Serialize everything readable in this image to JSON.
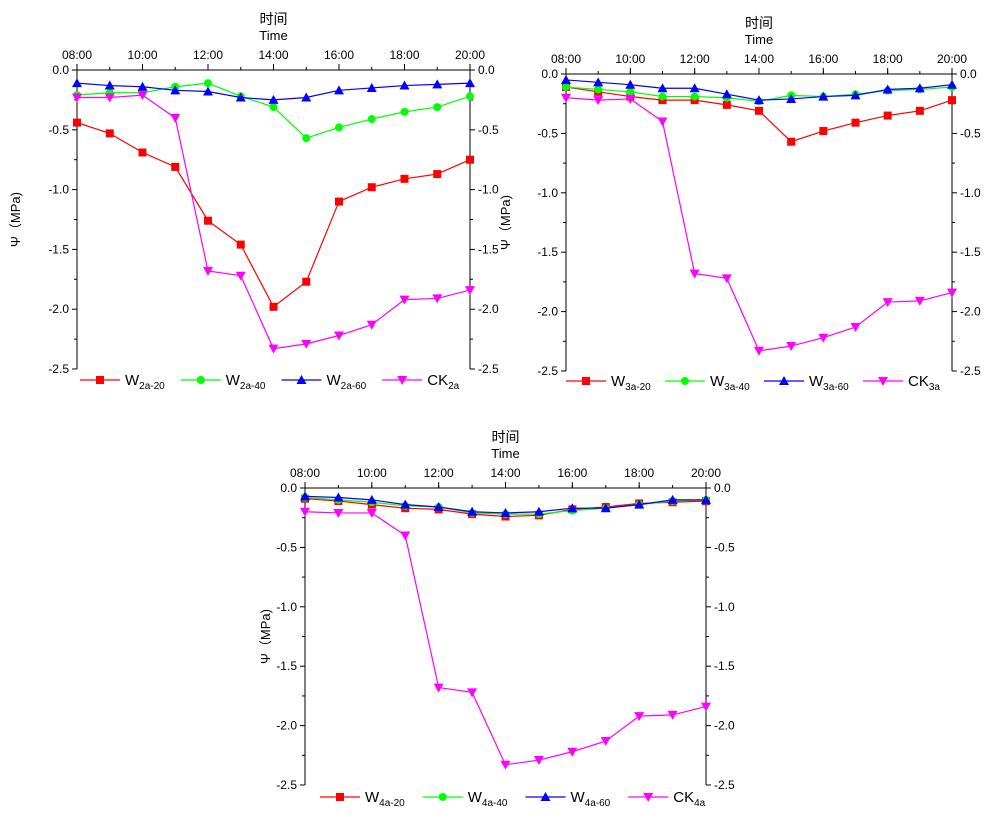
{
  "chart_data": [
    {
      "type": "line",
      "title": "时间",
      "subtitle": "Time",
      "xlabel": "",
      "ylabel": "Ψ（MPa)",
      "x_ticks": [
        "08:00",
        "10:00",
        "12:00",
        "14:00",
        "16:00",
        "18:00",
        "20:00"
      ],
      "x": [
        8,
        9,
        10,
        11,
        12,
        13,
        14,
        15,
        16,
        17,
        18,
        19,
        20
      ],
      "xlim": [
        8,
        20
      ],
      "ylim": [
        -2.5,
        0.0
      ],
      "y_ticks": [
        "-2.5",
        "-2.0",
        "-1.5",
        "-1.0",
        "-0.5",
        "0.0"
      ],
      "y_tick_values": [
        -2.5,
        -2.0,
        -1.5,
        -1.0,
        -0.5,
        0.0
      ],
      "legend_position": "bottom",
      "series": [
        {
          "name": "W",
          "sub": "2a-20",
          "color": "#ff0000",
          "marker": "square",
          "values": [
            -0.44,
            -0.53,
            -0.69,
            -0.81,
            -1.26,
            -1.46,
            -1.98,
            -1.77,
            -1.1,
            -0.98,
            -0.91,
            -0.87,
            -0.75
          ]
        },
        {
          "name": "W",
          "sub": "2a-40",
          "color": "#00ff00",
          "marker": "circle",
          "values": [
            -0.21,
            -0.19,
            -0.19,
            -0.14,
            -0.11,
            -0.22,
            -0.31,
            -0.57,
            -0.48,
            -0.41,
            -0.35,
            -0.31,
            -0.22
          ]
        },
        {
          "name": "W",
          "sub": "2a-60",
          "color": "#0000ff",
          "marker": "triangle-up",
          "values": [
            -0.11,
            -0.13,
            -0.14,
            -0.17,
            -0.18,
            -0.23,
            -0.25,
            -0.23,
            -0.17,
            -0.15,
            -0.13,
            -0.12,
            -0.11
          ]
        },
        {
          "name": "CK",
          "sub": "2a",
          "color": "#ff00ff",
          "marker": "triangle-down",
          "values": [
            -0.23,
            -0.23,
            -0.21,
            -0.4,
            -1.68,
            -1.72,
            -2.33,
            -2.29,
            -2.22,
            -2.13,
            -1.92,
            -1.91,
            -1.84
          ]
        }
      ]
    },
    {
      "type": "line",
      "title": "时间",
      "subtitle": "Time",
      "xlabel": "",
      "ylabel": "Ψ（MPa)",
      "x_ticks": [
        "08:00",
        "10:00",
        "12:00",
        "14:00",
        "16:00",
        "18:00",
        "20:00"
      ],
      "x": [
        8,
        9,
        10,
        11,
        12,
        13,
        14,
        15,
        16,
        17,
        18,
        19,
        20
      ],
      "xlim": [
        8,
        20
      ],
      "ylim": [
        -2.5,
        0.0
      ],
      "y_ticks": [
        "-2.5",
        "-2.0",
        "-1.5",
        "-1.0",
        "-0.5",
        "0.0"
      ],
      "y_tick_values": [
        -2.5,
        -2.0,
        -1.5,
        -1.0,
        -0.5,
        0.0
      ],
      "legend_position": "bottom",
      "series": [
        {
          "name": "W",
          "sub": "3a-20",
          "color": "#ff0000",
          "marker": "square",
          "values": [
            -0.11,
            -0.15,
            -0.19,
            -0.22,
            -0.22,
            -0.26,
            -0.31,
            -0.57,
            -0.48,
            -0.41,
            -0.35,
            -0.31,
            -0.22
          ]
        },
        {
          "name": "W",
          "sub": "3a-40",
          "color": "#00ff00",
          "marker": "circle",
          "values": [
            -0.11,
            -0.13,
            -0.15,
            -0.19,
            -0.19,
            -0.2,
            -0.23,
            -0.18,
            -0.19,
            -0.17,
            -0.14,
            -0.13,
            -0.11
          ]
        },
        {
          "name": "W",
          "sub": "3a-60",
          "color": "#0000ff",
          "marker": "triangle-up",
          "values": [
            -0.05,
            -0.07,
            -0.09,
            -0.12,
            -0.12,
            -0.17,
            -0.22,
            -0.21,
            -0.19,
            -0.18,
            -0.13,
            -0.12,
            -0.09
          ]
        },
        {
          "name": "CK",
          "sub": "3a",
          "color": "#ff00ff",
          "marker": "triangle-down",
          "values": [
            -0.2,
            -0.22,
            -0.21,
            -0.4,
            -1.68,
            -1.72,
            -2.33,
            -2.29,
            -2.22,
            -2.13,
            -1.92,
            -1.91,
            -1.84
          ]
        }
      ]
    },
    {
      "type": "line",
      "title": "时间",
      "subtitle": "Time",
      "xlabel": "",
      "ylabel": "Ψ（MPa)",
      "x_ticks": [
        "08:00",
        "10:00",
        "12:00",
        "14:00",
        "16:00",
        "18:00",
        "20:00"
      ],
      "x": [
        8,
        9,
        10,
        11,
        12,
        13,
        14,
        15,
        16,
        17,
        18,
        19,
        20
      ],
      "xlim": [
        8,
        20
      ],
      "ylim": [
        -2.5,
        0.0
      ],
      "y_ticks": [
        "-2.5",
        "-2.0",
        "-1.5",
        "-1.0",
        "-0.5",
        "0.0"
      ],
      "y_tick_values": [
        -2.5,
        -2.0,
        -1.5,
        -1.0,
        -0.5,
        0.0
      ],
      "legend_position": "bottom",
      "series": [
        {
          "name": "W",
          "sub": "4a-20",
          "color": "#ff0000",
          "marker": "square",
          "values": [
            -0.09,
            -0.11,
            -0.14,
            -0.17,
            -0.18,
            -0.22,
            -0.24,
            -0.23,
            -0.18,
            -0.16,
            -0.13,
            -0.12,
            -0.11
          ]
        },
        {
          "name": "W",
          "sub": "4a-40",
          "color": "#00ff00",
          "marker": "circle",
          "values": [
            -0.08,
            -0.1,
            -0.12,
            -0.15,
            -0.16,
            -0.21,
            -0.22,
            -0.22,
            -0.19,
            -0.17,
            -0.14,
            -0.11,
            -0.1
          ]
        },
        {
          "name": "W",
          "sub": "4a-60",
          "color": "#0000ff",
          "marker": "triangle-up",
          "values": [
            -0.07,
            -0.08,
            -0.1,
            -0.14,
            -0.16,
            -0.2,
            -0.21,
            -0.2,
            -0.17,
            -0.17,
            -0.14,
            -0.1,
            -0.1
          ]
        },
        {
          "name": "CK",
          "sub": "4a",
          "color": "#ff00ff",
          "marker": "triangle-down",
          "values": [
            -0.2,
            -0.21,
            -0.21,
            -0.4,
            -1.68,
            -1.72,
            -2.33,
            -2.29,
            -2.22,
            -2.13,
            -1.92,
            -1.91,
            -1.84
          ]
        }
      ]
    }
  ]
}
